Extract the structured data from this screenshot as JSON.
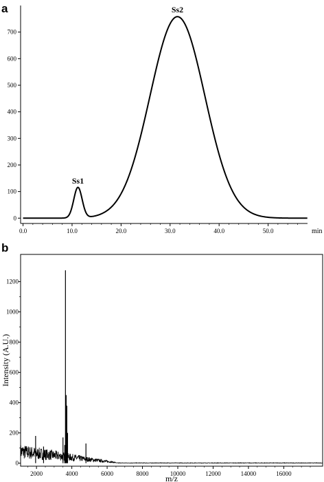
{
  "chart_data": [
    {
      "panel_label": "a",
      "type": "line",
      "x_unit": "min",
      "xlim": [
        -0.5,
        60
      ],
      "ylim": [
        -20,
        800
      ],
      "x_ticks": [
        "0.0",
        "10.0",
        "20.0",
        "30.0",
        "40.0",
        "50.0"
      ],
      "y_ticks": [
        "0",
        "100",
        "200",
        "300",
        "400",
        "500",
        "600",
        "700"
      ],
      "peaks": [
        {
          "label": "Ss1",
          "x": 11.2,
          "y": 115,
          "sigma": 0.85
        },
        {
          "label": "Ss2",
          "x": 31.5,
          "y": 758,
          "sigma": 5.6
        }
      ],
      "series": [
        {
          "points": [
            [
              0,
              0
            ],
            [
              6,
              0
            ],
            [
              9,
              3
            ],
            [
              10,
              28
            ],
            [
              10.5,
              70
            ],
            [
              11,
              108
            ],
            [
              11.2,
              115
            ],
            [
              11.5,
              108
            ],
            [
              12,
              75
            ],
            [
              12.5,
              35
            ],
            [
              13,
              12
            ],
            [
              14,
              3
            ],
            [
              15,
              2
            ],
            [
              16,
              5
            ],
            [
              18,
              18
            ],
            [
              20,
              60
            ],
            [
              22,
              150
            ],
            [
              24,
              280
            ],
            [
              26,
              430
            ],
            [
              28,
              590
            ],
            [
              30,
              710
            ],
            [
              31.5,
              758
            ],
            [
              33,
              730
            ],
            [
              35,
              630
            ],
            [
              37,
              480
            ],
            [
              39,
              320
            ],
            [
              41,
              190
            ],
            [
              43,
              100
            ],
            [
              45,
              45
            ],
            [
              47,
              18
            ],
            [
              50,
              6
            ],
            [
              53,
              2
            ],
            [
              58,
              0
            ]
          ]
        }
      ]
    },
    {
      "panel_label": "b",
      "type": "line",
      "xlabel": "m/z",
      "ylabel": "Intensity (A.U.)",
      "xlim": [
        1100,
        18200
      ],
      "ylim": [
        -20,
        1380
      ],
      "x_ticks": [
        "2000",
        "4000",
        "6000",
        "8000",
        "10000",
        "12000",
        "14000",
        "16000"
      ],
      "y_ticks": [
        "0",
        "200",
        "400",
        "600",
        "800",
        "1000",
        "1200"
      ],
      "noise_region": {
        "start": 1100,
        "end": 6500,
        "level_start": 90,
        "level_end": 5
      },
      "peaks": [
        {
          "x": 1950,
          "y": 180
        },
        {
          "x": 2400,
          "y": 110
        },
        {
          "x": 3500,
          "y": 170
        },
        {
          "x": 3600,
          "y": 120
        },
        {
          "x": 3640,
          "y": 1275
        },
        {
          "x": 3680,
          "y": 450
        },
        {
          "x": 3720,
          "y": 380
        },
        {
          "x": 3760,
          "y": 200
        },
        {
          "x": 4800,
          "y": 130
        }
      ]
    }
  ]
}
